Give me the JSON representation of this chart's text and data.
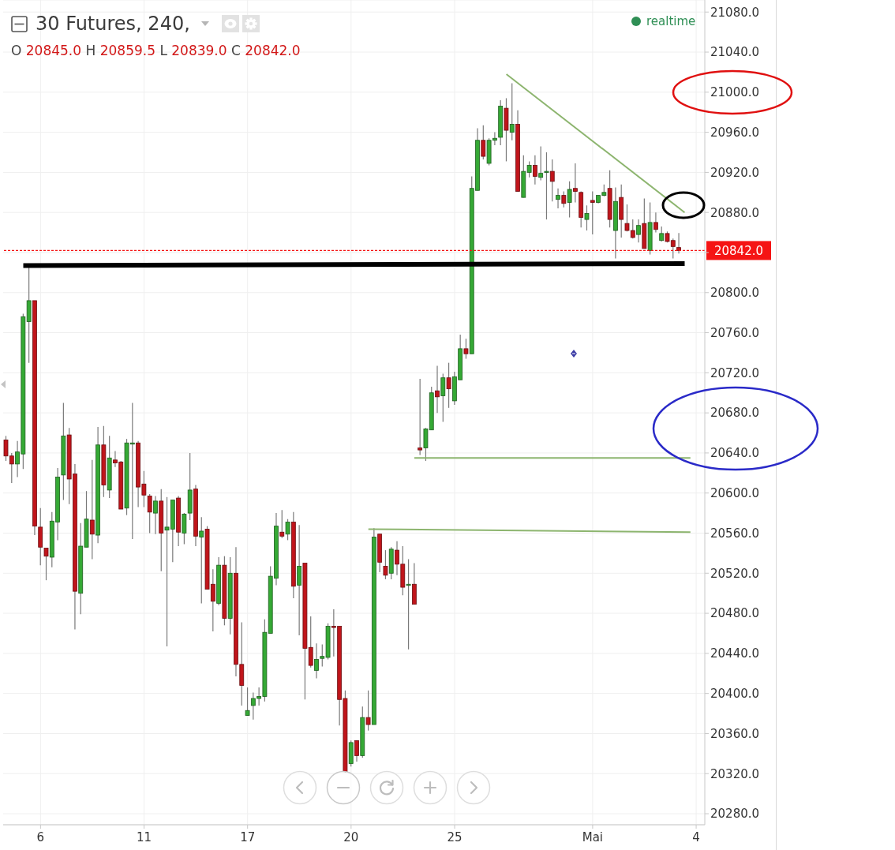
{
  "chart_data": {
    "type": "candlestick",
    "title": "30 Futures, 240,",
    "subtitle": "O 20845.0 H 20859.5 L 20839.0 C 20842.0",
    "annotations": [
      "realtime"
    ],
    "categories": [
      null,
      null,
      null,
      null,
      null,
      null,
      "6",
      null,
      null,
      null,
      null,
      null,
      null,
      null,
      null,
      null,
      null,
      null,
      null,
      null,
      null,
      null,
      null,
      null,
      "11",
      null,
      null,
      null,
      null,
      null,
      null,
      null,
      null,
      null,
      null,
      null,
      null,
      null,
      null,
      null,
      null,
      null,
      "17",
      null,
      null,
      null,
      null,
      null,
      null,
      null,
      null,
      null,
      null,
      null,
      null,
      null,
      null,
      null,
      null,
      null,
      "20",
      null,
      null,
      null,
      null,
      null,
      null,
      null,
      null,
      null,
      null,
      null,
      null,
      null,
      null,
      null,
      null,
      null,
      "25",
      null,
      null,
      null,
      null,
      null,
      null,
      null,
      null,
      null,
      null,
      null,
      null,
      null,
      null,
      null,
      null,
      null,
      null,
      null,
      null,
      null,
      null,
      null,
      "Mai",
      null,
      null,
      null,
      null,
      null,
      null,
      null,
      null,
      null,
      null,
      null,
      null,
      null,
      null,
      null,
      null,
      null,
      "4",
      null
    ],
    "series": [
      {
        "ohlc": [
          [
            20653,
            20657,
            20632,
            20637
          ],
          [
            20637,
            20640,
            20610,
            20629
          ],
          [
            20629,
            20652,
            20616,
            20641
          ],
          [
            20639,
            20779,
            20624,
            20776
          ],
          [
            20771,
            20827,
            20730,
            20792
          ],
          [
            20792,
            20792,
            20558,
            20567
          ],
          [
            20566,
            20585,
            20528,
            20546
          ],
          [
            20545,
            20545,
            20513,
            20537
          ],
          [
            20536,
            20581,
            20526,
            20572
          ],
          [
            20571,
            20625,
            20553,
            20616
          ],
          [
            20618,
            20690,
            20593,
            20657
          ],
          [
            20658,
            20665,
            20589,
            20614
          ],
          [
            20619,
            20629,
            20464,
            20502
          ],
          [
            20500,
            20570,
            20479,
            20547
          ],
          [
            20546,
            20602,
            20546,
            20574
          ],
          [
            20573,
            20633,
            20534,
            20559
          ],
          [
            20558,
            20666,
            20550,
            20648
          ],
          [
            20648,
            20667,
            20596,
            20608
          ],
          [
            20603,
            20657,
            20595,
            20635
          ],
          [
            20633,
            20642,
            20626,
            20630
          ],
          [
            20631,
            20632,
            20584,
            20584
          ],
          [
            20585,
            20654,
            20578,
            20650
          ],
          [
            20649,
            20690,
            20554,
            20650
          ],
          [
            20650,
            20652,
            20586,
            20606
          ],
          [
            20609,
            20622,
            20586,
            20598
          ],
          [
            20597,
            20599,
            20560,
            20581
          ],
          [
            20580,
            20597,
            20559,
            20592
          ],
          [
            20592,
            20604,
            20522,
            20560
          ],
          [
            20563,
            20596,
            20447,
            20566
          ],
          [
            20564,
            20593,
            20531,
            20593
          ],
          [
            20595,
            20597,
            20547,
            20561
          ],
          [
            20560,
            20580,
            20549,
            20579
          ],
          [
            20580,
            20640,
            20573,
            20603
          ],
          [
            20604,
            20608,
            20547,
            20557
          ],
          [
            20556,
            20576,
            20490,
            20562
          ],
          [
            20564,
            20567,
            20504,
            20504
          ],
          [
            20509,
            20524,
            20462,
            20492
          ],
          [
            20490,
            20536,
            20488,
            20528
          ],
          [
            20528,
            20537,
            20468,
            20475
          ],
          [
            20475,
            20536,
            20459,
            20520
          ],
          [
            20520,
            20546,
            20417,
            20429
          ],
          [
            20429,
            20471,
            20388,
            20408
          ],
          [
            20378,
            20406,
            20378,
            20383
          ],
          [
            20388,
            20401,
            20374,
            20395
          ],
          [
            20395,
            20406,
            20388,
            20397
          ],
          [
            20397,
            20474,
            20392,
            20461
          ],
          [
            20460,
            20527,
            20460,
            20517
          ],
          [
            20515,
            20580,
            20508,
            20567
          ],
          [
            20561,
            20583,
            20555,
            20557
          ],
          [
            20559,
            20574,
            20553,
            20571
          ],
          [
            20571,
            20581,
            20495,
            20507
          ],
          [
            20508,
            20568,
            20458,
            20527
          ],
          [
            20530,
            20530,
            20394,
            20445
          ],
          [
            20446,
            20477,
            20426,
            20428
          ],
          [
            20423,
            20450,
            20415,
            20434
          ],
          [
            20435,
            20449,
            20427,
            20437
          ],
          [
            20436,
            20470,
            20434,
            20467
          ],
          [
            20467,
            20484,
            20437,
            20466
          ],
          [
            20467,
            20467,
            20368,
            20394
          ],
          [
            20395,
            20403,
            20321,
            20322
          ],
          [
            20330,
            20353,
            20327,
            20351
          ],
          [
            20353,
            20353,
            20332,
            20338
          ],
          [
            20338,
            20387,
            20336,
            20376
          ],
          [
            20376,
            20403,
            20363,
            20369
          ],
          [
            20369,
            20565,
            20369,
            20556
          ],
          [
            20559,
            20559,
            20521,
            20531
          ],
          [
            20527,
            20543,
            20514,
            20518
          ],
          [
            20520,
            20546,
            20514,
            20544
          ],
          [
            20543,
            20552,
            20518,
            20529
          ],
          [
            20529,
            20547,
            20498,
            20506
          ],
          [
            20508,
            20534,
            20444,
            20509
          ],
          [
            20509,
            20530,
            20489,
            20489
          ],
          [
            20645,
            20714,
            20638,
            20643
          ],
          [
            20645,
            20665,
            20632,
            20664
          ],
          [
            20663,
            20706,
            20663,
            20700
          ],
          [
            20702,
            20727,
            20680,
            20696
          ],
          [
            20697,
            20719,
            20671,
            20715
          ],
          [
            20715,
            20730,
            20685,
            20704
          ],
          [
            20692,
            20721,
            20688,
            20716
          ],
          [
            20713,
            20758,
            20713,
            20744
          ],
          [
            20744,
            20754,
            20734,
            20739
          ],
          [
            20739,
            20916,
            20739,
            20904
          ],
          [
            20902,
            20964,
            20902,
            20952
          ],
          [
            20952,
            20967,
            20933,
            20936
          ],
          [
            20929,
            20954,
            20927,
            20952
          ],
          [
            20952,
            20960,
            20947,
            20954
          ],
          [
            20955,
            20992,
            20947,
            20986
          ],
          [
            20984,
            20994,
            20931,
            20962
          ],
          [
            20960,
            21009,
            20952,
            20968
          ],
          [
            20968,
            20982,
            20901,
            20901
          ],
          [
            20895,
            20937,
            20895,
            20921
          ],
          [
            20920,
            20931,
            20915,
            20927
          ],
          [
            20927,
            20937,
            20908,
            20916
          ],
          [
            20915,
            20946,
            20912,
            20919
          ],
          [
            20920,
            20940,
            20873,
            20921
          ],
          [
            20921,
            20933,
            20891,
            20911
          ],
          [
            20893,
            20904,
            20884,
            20897
          ],
          [
            20897,
            20901,
            20885,
            20889
          ],
          [
            20890,
            20911,
            20875,
            20903
          ],
          [
            20904,
            20929,
            20890,
            20901
          ],
          [
            20900,
            20901,
            20865,
            20875
          ],
          [
            20873,
            20887,
            20862,
            20879
          ],
          [
            20892,
            20901,
            20858,
            20890
          ],
          [
            20890,
            20897,
            20889,
            20897
          ],
          [
            20897,
            20908,
            20896,
            20900
          ],
          [
            20904,
            20922,
            20865,
            20873
          ],
          [
            20862,
            20905,
            20834,
            20891
          ],
          [
            20895,
            20908,
            20855,
            20873
          ],
          [
            20869,
            20888,
            20861,
            20862
          ],
          [
            20862,
            20873,
            20854,
            20855
          ],
          [
            20858,
            20873,
            20850,
            20867
          ],
          [
            20869,
            20894,
            20844,
            20844
          ],
          [
            20842,
            20890,
            20838,
            20870
          ],
          [
            20870,
            20880,
            20860,
            20863
          ],
          [
            20852,
            20866,
            20851,
            20859
          ],
          [
            20859,
            20861,
            20850,
            20851
          ],
          [
            20852,
            20854,
            20834,
            20846
          ],
          [
            20845,
            20859.5,
            20839,
            20842
          ],
          null,
          null,
          null,
          null
        ],
        "colors": [
          "#c0151b",
          "#c0151b",
          "#35a935",
          "#35a935",
          "#35a935",
          "#c0151b",
          "#c0151b",
          "#c0151b",
          "#35a935",
          "#35a935",
          "#35a935",
          "#c0151b",
          "#c0151b",
          "#35a935",
          "#35a935",
          "#c0151b",
          "#35a935",
          "#c0151b",
          "#35a935",
          "#c0151b",
          "#c0151b",
          "#35a935",
          "#35a935",
          "#c0151b",
          "#c0151b",
          "#c0151b",
          "#35a935",
          "#c0151b",
          "#35a935",
          "#35a935",
          "#c0151b",
          "#35a935",
          "#35a935",
          "#c0151b",
          "#35a935",
          "#c0151b",
          "#c0151b",
          "#35a935",
          "#c0151b",
          "#35a935",
          "#c0151b",
          "#c0151b",
          "#35a935",
          "#35a935",
          "#35a935",
          "#35a935",
          "#35a935",
          "#35a935",
          "#c0151b",
          "#35a935",
          "#c0151b",
          "#35a935",
          "#c0151b",
          "#c0151b",
          "#35a935",
          "#35a935",
          "#35a935",
          "#c0151b",
          "#c0151b",
          "#c0151b",
          "#35a935",
          "#c0151b",
          "#35a935",
          "#c0151b",
          "#35a935",
          "#c0151b",
          "#c0151b",
          "#35a935",
          "#c0151b",
          "#c0151b",
          "#35a935",
          "#c0151b",
          "#c0151b",
          "#35a935",
          "#35a935",
          "#c0151b",
          "#35a935",
          "#c0151b",
          "#35a935",
          "#35a935",
          "#c0151b",
          "#35a935",
          "#35a935",
          "#c0151b",
          "#35a935",
          "#35a935",
          "#35a935",
          "#c0151b",
          "#35a935",
          "#c0151b",
          "#35a935",
          "#35a935",
          "#c0151b",
          "#35a935",
          "#35a935",
          "#c0151b",
          "#35a935",
          "#c0151b",
          "#35a935",
          "#c0151b",
          "#c0151b",
          "#35a935",
          "#c0151b",
          "#35a935",
          "#35a935",
          "#c0151b",
          "#35a935",
          "#c0151b",
          "#c0151b",
          "#c0151b",
          "#35a935",
          "#c0151b",
          "#35a935",
          "#c0151b",
          "#35a935",
          "#c0151b",
          "#c0151b",
          "#c0151b",
          null,
          null,
          null,
          null
        ]
      },
      {
        "type": "line",
        "color": "#8db56f",
        "values": [
          null,
          null,
          null,
          null,
          null,
          null,
          null,
          null,
          null,
          null,
          null,
          null,
          null,
          null,
          null,
          null,
          null,
          null,
          null,
          null,
          null,
          null,
          null,
          null,
          null,
          null,
          null,
          null,
          null,
          null,
          null,
          null,
          null,
          null,
          null,
          null,
          null,
          null,
          null,
          null,
          null,
          null,
          null,
          null,
          null,
          null,
          null,
          null,
          null,
          null,
          null,
          null,
          null,
          null,
          null,
          null,
          null,
          null,
          null,
          null,
          null,
          null,
          null,
          null,
          null,
          null,
          null,
          null,
          null,
          null,
          null,
          null,
          null,
          null,
          null,
          null,
          null,
          null,
          null,
          null,
          null,
          null,
          null,
          null,
          null,
          null,
          null,
          21018,
          null,
          null,
          null,
          null,
          null,
          null,
          null,
          null,
          null,
          null,
          null,
          null,
          null,
          null,
          null,
          null,
          null,
          null,
          null,
          null,
          null,
          null,
          null,
          null,
          null,
          null,
          null,
          null,
          null,
          null,
          20880,
          null,
          null,
          null
        ]
      },
      {
        "type": "line",
        "color": "#8db56f",
        "values": [
          null,
          null,
          null,
          null,
          null,
          null,
          null,
          null,
          null,
          null,
          null,
          null,
          null,
          null,
          null,
          null,
          null,
          null,
          null,
          null,
          null,
          null,
          null,
          null,
          null,
          null,
          null,
          null,
          null,
          null,
          null,
          null,
          null,
          null,
          null,
          null,
          null,
          null,
          null,
          null,
          null,
          null,
          null,
          null,
          null,
          null,
          null,
          null,
          null,
          null,
          null,
          null,
          null,
          null,
          null,
          null,
          null,
          null,
          null,
          null,
          null,
          null,
          null,
          null,
          null,
          null,
          null,
          null,
          null,
          null,
          null,
          20635,
          null,
          null,
          null,
          null,
          null,
          null,
          null,
          null,
          null,
          null,
          null,
          null,
          null,
          null,
          null,
          null,
          null,
          null,
          null,
          null,
          null,
          null,
          null,
          null,
          null,
          null,
          null,
          null,
          null,
          null,
          null,
          null,
          null,
          null,
          null,
          null,
          null,
          null,
          null,
          null,
          null,
          null,
          null,
          null,
          null,
          null,
          null,
          20635,
          null,
          null
        ]
      },
      {
        "type": "line",
        "color": "#8db56f",
        "values": [
          null,
          null,
          null,
          null,
          null,
          null,
          null,
          null,
          null,
          null,
          null,
          null,
          null,
          null,
          null,
          null,
          null,
          null,
          null,
          null,
          null,
          null,
          null,
          null,
          null,
          null,
          null,
          null,
          null,
          null,
          null,
          null,
          null,
          null,
          null,
          null,
          null,
          null,
          null,
          null,
          null,
          null,
          null,
          null,
          null,
          null,
          null,
          null,
          null,
          null,
          null,
          null,
          null,
          null,
          null,
          null,
          null,
          null,
          null,
          null,
          null,
          null,
          null,
          20564,
          null,
          null,
          null,
          null,
          null,
          null,
          null,
          null,
          null,
          null,
          null,
          null,
          null,
          null,
          null,
          null,
          null,
          null,
          null,
          null,
          null,
          null,
          null,
          null,
          null,
          null,
          null,
          null,
          null,
          null,
          null,
          null,
          null,
          null,
          null,
          null,
          null,
          null,
          null,
          null,
          null,
          null,
          null,
          null,
          null,
          null,
          null,
          null,
          null,
          null,
          null,
          null,
          null,
          null,
          null,
          20561,
          null,
          null
        ]
      },
      {
        "type": "line",
        "color": "#000000",
        "values": [
          null,
          null,
          null,
          20827,
          null,
          null,
          null,
          null,
          null,
          null,
          null,
          null,
          null,
          null,
          null,
          null,
          null,
          null,
          null,
          null,
          null,
          null,
          null,
          null,
          null,
          null,
          null,
          null,
          null,
          null,
          null,
          null,
          null,
          null,
          null,
          null,
          null,
          null,
          null,
          null,
          null,
          null,
          null,
          null,
          null,
          null,
          null,
          null,
          null,
          null,
          null,
          null,
          null,
          null,
          null,
          null,
          null,
          null,
          null,
          null,
          null,
          null,
          null,
          null,
          null,
          null,
          null,
          null,
          null,
          null,
          null,
          null,
          null,
          null,
          null,
          null,
          null,
          null,
          null,
          null,
          null,
          null,
          null,
          null,
          null,
          null,
          null,
          null,
          null,
          null,
          null,
          null,
          null,
          null,
          null,
          null,
          null,
          null,
          null,
          null,
          null,
          null,
          null,
          null,
          null,
          null,
          null,
          null,
          null,
          null,
          null,
          null,
          null,
          null,
          null,
          null,
          null,
          null,
          20829,
          null,
          null,
          null
        ]
      }
    ],
    "ylim": [
      20269,
      21092
    ],
    "yticks": [
      {
        "value": 20280,
        "label": "20280.0"
      },
      {
        "value": 20320,
        "label": "20320.0"
      },
      {
        "value": 20360,
        "label": "20360.0"
      },
      {
        "value": 20400,
        "label": "20400.0"
      },
      {
        "value": 20440,
        "label": "20440.0"
      },
      {
        "value": 20480,
        "label": "20480.0"
      },
      {
        "value": 20520,
        "label": "20520.0"
      },
      {
        "value": 20560,
        "label": "20560.0"
      },
      {
        "value": 20600,
        "label": "20600.0"
      },
      {
        "value": 20640,
        "label": "20640.0"
      },
      {
        "value": 20680,
        "label": "20680.0"
      },
      {
        "value": 20720,
        "label": "20720.0"
      },
      {
        "value": 20760,
        "label": "20760.0"
      },
      {
        "value": 20800,
        "label": "20800.0"
      },
      {
        "value": 20840,
        "label": null
      },
      {
        "value": 20880,
        "label": "20880.0"
      },
      {
        "value": 20920,
        "label": "20920.0"
      },
      {
        "value": 20960,
        "label": "20960.0"
      },
      {
        "value": 21000,
        "label": "21000.0"
      },
      {
        "value": 21040,
        "label": "21040.0"
      },
      {
        "value": 21080,
        "label": "21080.0"
      }
    ],
    "grid": true,
    "ref_lines": [
      {
        "axis": "y",
        "value": 20842,
        "label": "20842.0",
        "color": "#f51414",
        "line_style": "dashed"
      }
    ]
  }
}
